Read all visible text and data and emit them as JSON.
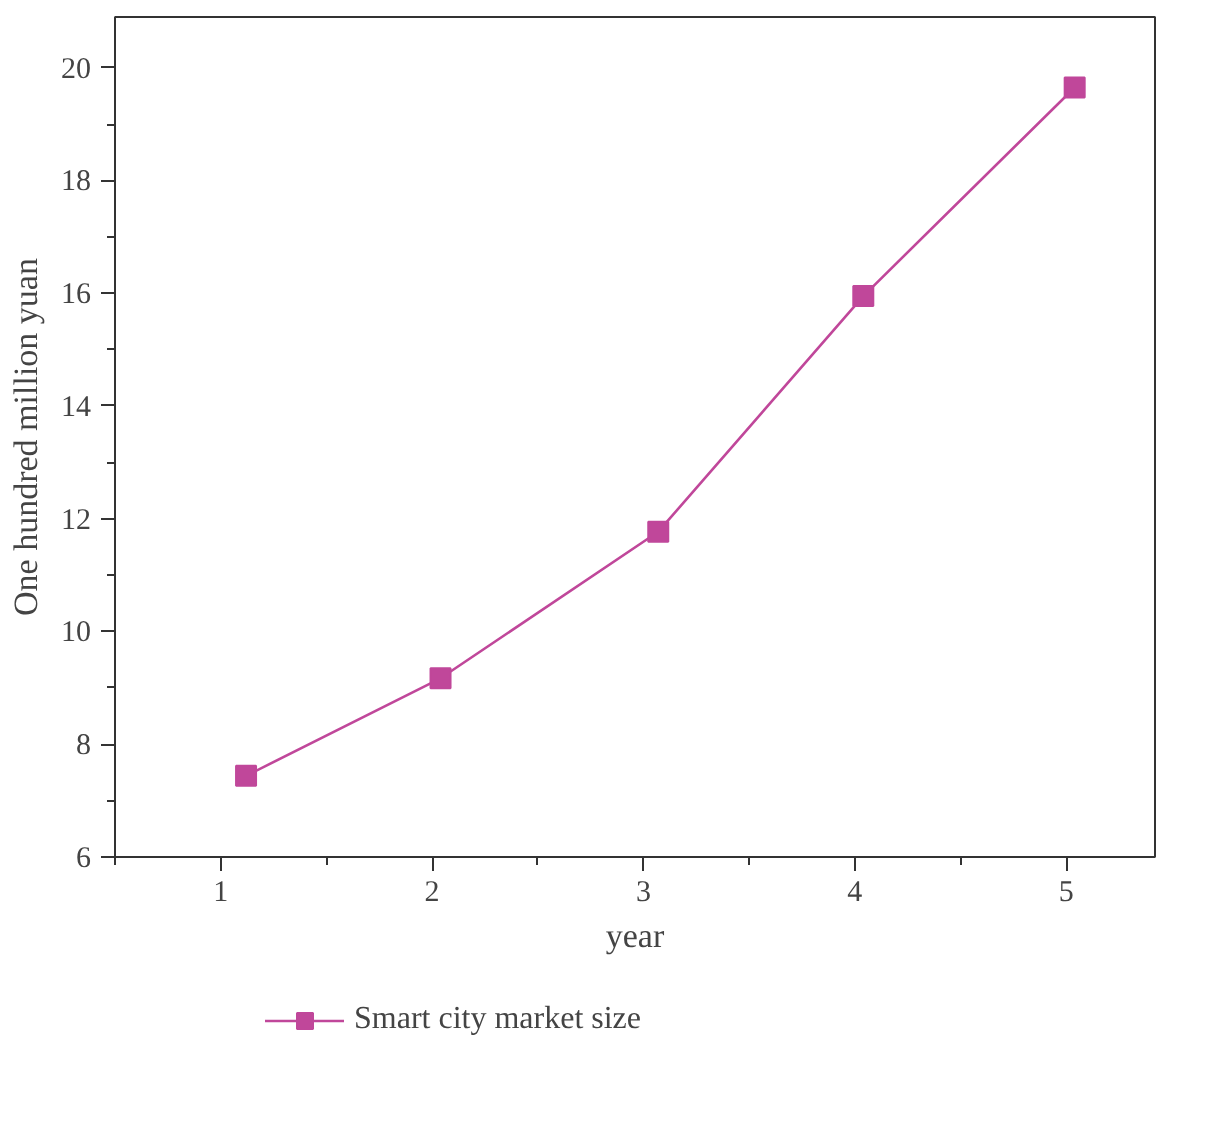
{
  "chart_data": {
    "type": "line",
    "xlabel": "year",
    "ylabel": "One hundred million yuan",
    "x": [
      1.12,
      2.04,
      3.07,
      4.04,
      5.04
    ],
    "series": [
      {
        "name": "Smart city market size",
        "color": "#c0479a",
        "values": [
          7.44,
          9.17,
          11.77,
          15.95,
          19.65
        ]
      }
    ],
    "xlim": [
      0.5,
      5.42
    ],
    "ylim": [
      6,
      20.9
    ],
    "xticks": [
      1,
      2,
      3,
      4,
      5
    ],
    "yticks": [
      6,
      8,
      10,
      12,
      14,
      16,
      18,
      20
    ],
    "grid": false,
    "legend": "bottom left",
    "marker": "square",
    "line_style": "solid"
  }
}
